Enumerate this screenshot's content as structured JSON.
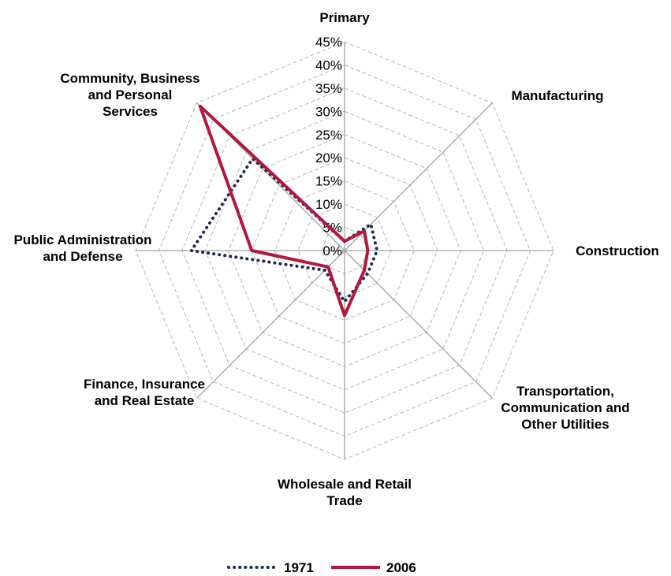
{
  "chart_data": {
    "type": "radar",
    "categories": [
      "Primary",
      "Manufacturing",
      "Construction",
      "Transportation, Communication and Other Utilities",
      "Wholesale and Retail Trade",
      "Finance, Insurance and Real Estate",
      "Public Administration and Defense",
      "Community, Business and Personal Services"
    ],
    "series": [
      {
        "name": "1971",
        "color": "#1c2a4f",
        "style": "dotted",
        "values": [
          2,
          8,
          7,
          7,
          11,
          6,
          33,
          28
        ]
      },
      {
        "name": "2006",
        "color": "#b3173b",
        "style": "solid",
        "values": [
          2,
          6,
          5,
          6,
          14,
          5,
          20,
          44
        ]
      }
    ],
    "rlim": [
      0,
      45
    ],
    "rticks": [
      {
        "value": 0,
        "label": "0%"
      },
      {
        "value": 5,
        "label": "5%"
      },
      {
        "value": 10,
        "label": "10%"
      },
      {
        "value": 15,
        "label": "15%"
      },
      {
        "value": 20,
        "label": "20%"
      },
      {
        "value": 25,
        "label": "25%"
      },
      {
        "value": 30,
        "label": "30%"
      },
      {
        "value": 35,
        "label": "35%"
      },
      {
        "value": 40,
        "label": "40%"
      },
      {
        "value": 45,
        "label": "45%"
      }
    ],
    "grid": true,
    "legend": "bottom"
  }
}
